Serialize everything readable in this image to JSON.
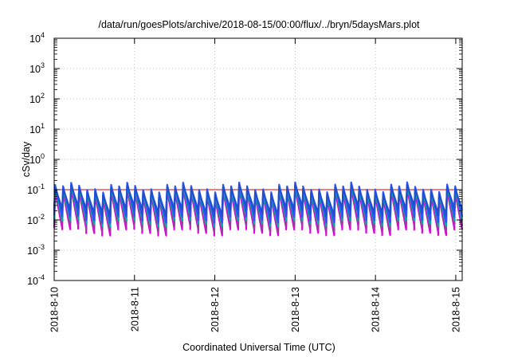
{
  "chart_data": {
    "type": "line",
    "title": "/data/run/goesPlots/archive/2018-08-15/00:00/flux/../bryn/5daysMars.plot",
    "xlabel": "Coordinated Universal Time (UTC)",
    "ylabel": "cSv/day",
    "yscale": "log",
    "ylim": [
      0.0001,
      10000
    ],
    "y_ticks": [
      {
        "value": 0.0001,
        "base": "10",
        "exp": "-4"
      },
      {
        "value": 0.001,
        "base": "10",
        "exp": "-3"
      },
      {
        "value": 0.01,
        "base": "10",
        "exp": "-2"
      },
      {
        "value": 0.1,
        "base": "10",
        "exp": "-1"
      },
      {
        "value": 1,
        "base": "10",
        "exp": "0"
      },
      {
        "value": 10,
        "base": "10",
        "exp": "1"
      },
      {
        "value": 100,
        "base": "10",
        "exp": "2"
      },
      {
        "value": 1000,
        "base": "10",
        "exp": "3"
      },
      {
        "value": 10000,
        "base": "10",
        "exp": "4"
      }
    ],
    "x_ticks": [
      "2018-8-10",
      "2018-8-11",
      "2018-8-12",
      "2018-8-13",
      "2018-8-14",
      "2018-8-15"
    ],
    "x_range_days": [
      0,
      5.08
    ],
    "grid": true,
    "reference_line": {
      "y": 0.1,
      "color": "#e00000"
    },
    "cycles_per_day": 10.1,
    "series": [
      {
        "color": "#e000e0",
        "peak": 0.075,
        "trough": 0.0045
      },
      {
        "color": "#9a3aa0",
        "peak": 0.085,
        "trough": 0.006
      },
      {
        "color": "#00b0a0",
        "peak": 0.1,
        "trough": 0.009
      },
      {
        "color": "#3050ff",
        "peak": 0.12,
        "trough": 0.012
      },
      {
        "color": "#2050d0",
        "peak": 0.1,
        "trough": 0.02
      }
    ]
  }
}
